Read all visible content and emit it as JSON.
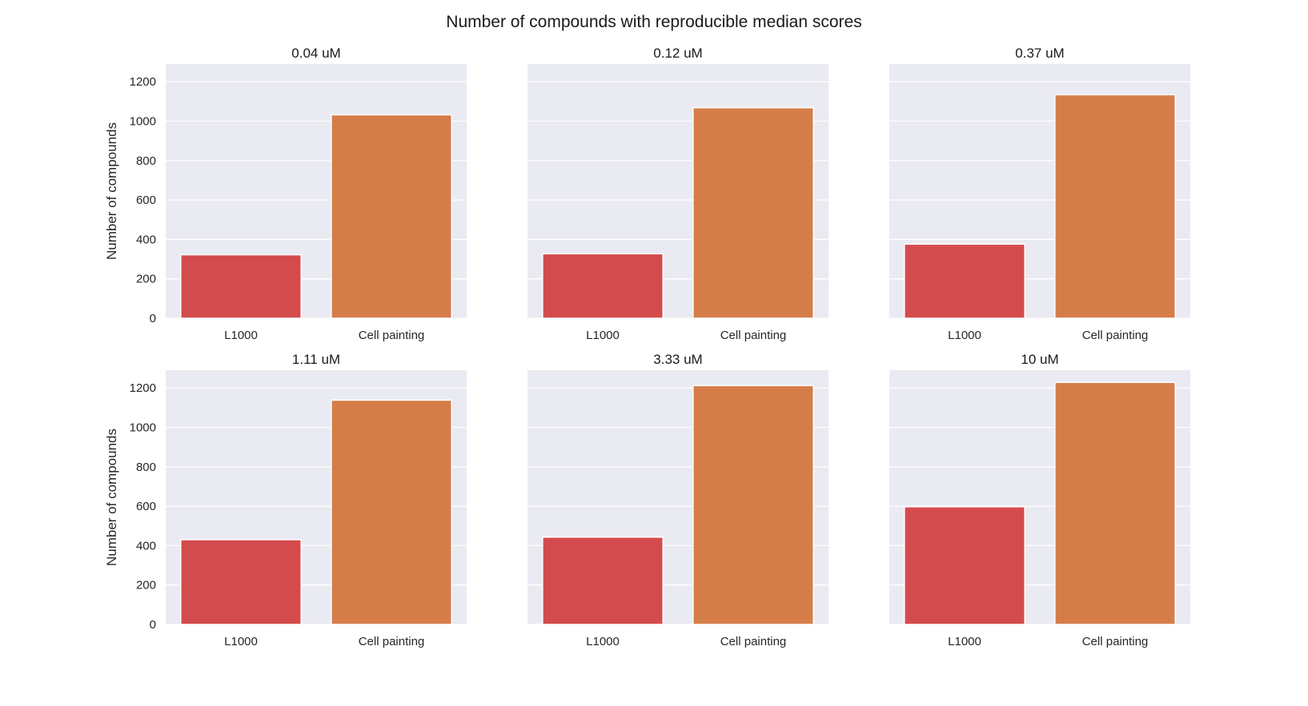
{
  "figure": {
    "suptitle": "Number of compounds with reproducible median scores"
  },
  "chart_data": [
    {
      "type": "bar",
      "title": "0.04 uM",
      "categories": [
        "L1000",
        "Cell painting"
      ],
      "values": [
        322,
        1032
      ],
      "ylabel": "Number of compounds",
      "xlabel": "",
      "ylim": [
        0,
        1290
      ],
      "yticks": [
        0,
        200,
        400,
        600,
        800,
        1000,
        1200
      ],
      "grid": true
    },
    {
      "type": "bar",
      "title": "0.12 uM",
      "categories": [
        "L1000",
        "Cell painting"
      ],
      "values": [
        327,
        1068
      ],
      "ylabel": "",
      "xlabel": "",
      "ylim": [
        0,
        1290
      ],
      "yticks": [
        0,
        200,
        400,
        600,
        800,
        1000,
        1200
      ],
      "grid": true
    },
    {
      "type": "bar",
      "title": "0.37 uM",
      "categories": [
        "L1000",
        "Cell painting"
      ],
      "values": [
        376,
        1134
      ],
      "ylabel": "",
      "xlabel": "",
      "ylim": [
        0,
        1290
      ],
      "yticks": [
        0,
        200,
        400,
        600,
        800,
        1000,
        1200
      ],
      "grid": true
    },
    {
      "type": "bar",
      "title": "1.11 uM",
      "categories": [
        "L1000",
        "Cell painting"
      ],
      "values": [
        430,
        1138
      ],
      "ylabel": "Number of compounds",
      "xlabel": "",
      "ylim": [
        0,
        1290
      ],
      "yticks": [
        0,
        200,
        400,
        600,
        800,
        1000,
        1200
      ],
      "grid": true
    },
    {
      "type": "bar",
      "title": "3.33 uM",
      "categories": [
        "L1000",
        "Cell painting"
      ],
      "values": [
        443,
        1212
      ],
      "ylabel": "",
      "xlabel": "",
      "ylim": [
        0,
        1290
      ],
      "yticks": [
        0,
        200,
        400,
        600,
        800,
        1000,
        1200
      ],
      "grid": true
    },
    {
      "type": "bar",
      "title": "10 uM",
      "categories": [
        "L1000",
        "Cell painting"
      ],
      "values": [
        597,
        1228
      ],
      "ylabel": "",
      "xlabel": "",
      "ylim": [
        0,
        1290
      ],
      "yticks": [
        0,
        200,
        400,
        600,
        800,
        1000,
        1200
      ],
      "grid": true
    }
  ],
  "colors": {
    "L1000": "#d44b4d",
    "Cell painting": "#d57d49",
    "panel_bg": "#eaeaf2",
    "grid": "#ffffff"
  }
}
